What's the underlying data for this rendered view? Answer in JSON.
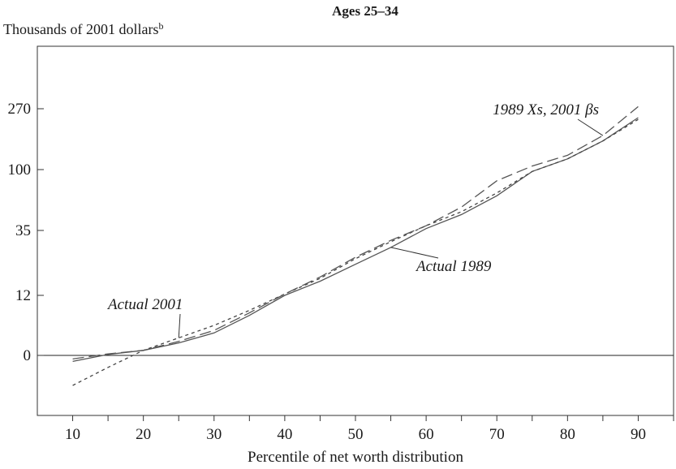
{
  "chart_data": {
    "type": "line",
    "title": "Ages 25–34",
    "ylabel": "Thousands of 2001 dollars",
    "ylabel_superscript": "b",
    "xlabel": "Percentile of net worth distribution",
    "x": [
      10,
      15,
      20,
      25,
      30,
      35,
      40,
      45,
      50,
      55,
      60,
      65,
      70,
      75,
      80,
      85,
      90
    ],
    "xlim": [
      5,
      95
    ],
    "x_ticks": [
      "10",
      "20",
      "30",
      "40",
      "50",
      "60",
      "70",
      "80",
      "90"
    ],
    "x_tick_values": [
      10,
      20,
      30,
      40,
      50,
      60,
      70,
      80,
      90
    ],
    "y_ticks": [
      "0",
      "12",
      "35",
      "100",
      "270"
    ],
    "y_scale": "nonlinear (labeled ticks 0, 12, 35, 100, 270 equally spaced)",
    "grid": false,
    "reference_line": 0,
    "series": [
      {
        "name": "Actual 1989",
        "style": "solid",
        "color": "#555555",
        "values": [
          -0.5,
          0.2,
          1.0,
          2.5,
          4.5,
          8.0,
          12.0,
          17.0,
          23.0,
          29.0,
          37.0,
          52.0,
          72.0,
          98.0,
          130.0,
          180.0,
          245.0
        ]
      },
      {
        "name": "Actual 2001",
        "style": "short-dash",
        "color": "#444444",
        "values": [
          -2.5,
          -1.0,
          1.0,
          3.5,
          6.0,
          9.0,
          12.5,
          18.0,
          25.0,
          31.0,
          40.0,
          55.0,
          75.0,
          98.0,
          130.0,
          180.0,
          240.0
        ]
      },
      {
        "name": "1989 Xs, 2001 βs",
        "style": "long-dash",
        "color": "#555555",
        "values": [
          -0.3,
          0.3,
          1.0,
          2.8,
          5.0,
          8.5,
          12.5,
          18.5,
          25.5,
          31.5,
          40.0,
          60.0,
          88.0,
          110.0,
          140.0,
          195.0,
          275.0
        ]
      }
    ],
    "annotations": [
      {
        "text": "1989 Xs, 2001 βs",
        "series": "1989 Xs, 2001 βs"
      },
      {
        "text": "Actual 2001",
        "series": "Actual 2001"
      },
      {
        "text": "Actual 1989",
        "series": "Actual 1989"
      }
    ]
  }
}
